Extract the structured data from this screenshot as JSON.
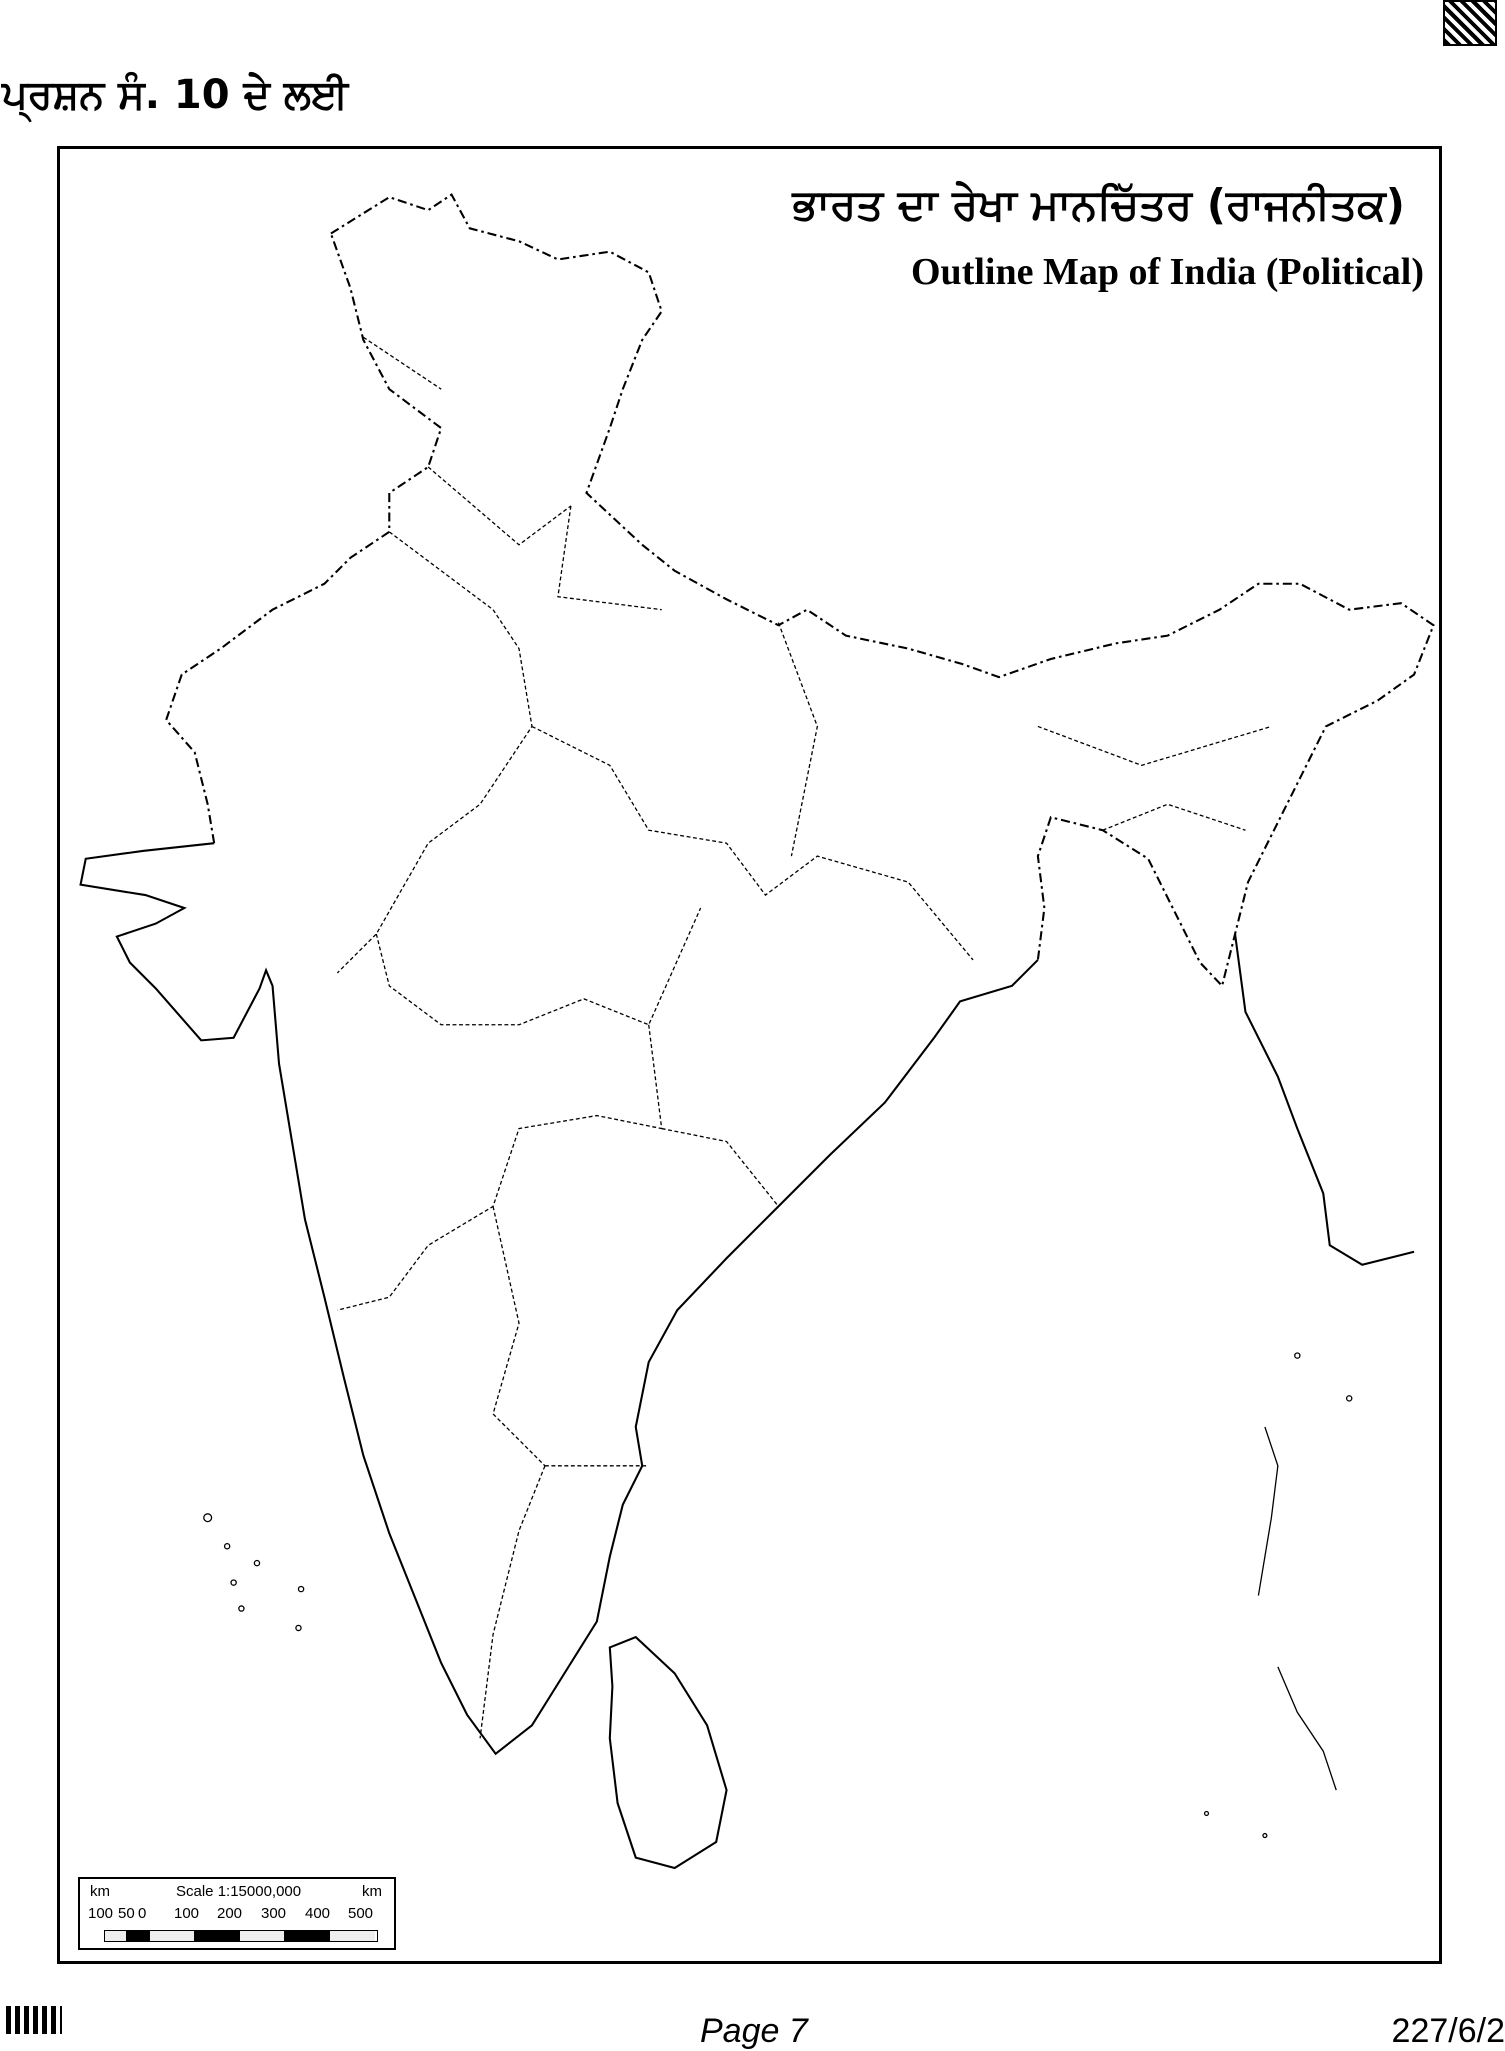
{
  "header": {
    "question_label": "ਪ੍ਰਸ਼ਨ ਸੰ. 10 ਦੇ ਲਈ"
  },
  "map": {
    "title_punjabi": "ਭਾਰਤ ਦਾ ਰੇਖਾ ਮਾਨਚਿੱਤਰ (ਰਾਜਨੀਤਕ)",
    "title_english": "Outline Map of India (Political)",
    "scale": {
      "unit_left": "km",
      "label": "Scale 1:15000,000",
      "unit_right": "km",
      "ticks": [
        "100",
        "50",
        "0",
        "100",
        "200",
        "300",
        "400",
        "500"
      ]
    }
  },
  "footer": {
    "page": "Page 7",
    "code": "227/6/2"
  }
}
